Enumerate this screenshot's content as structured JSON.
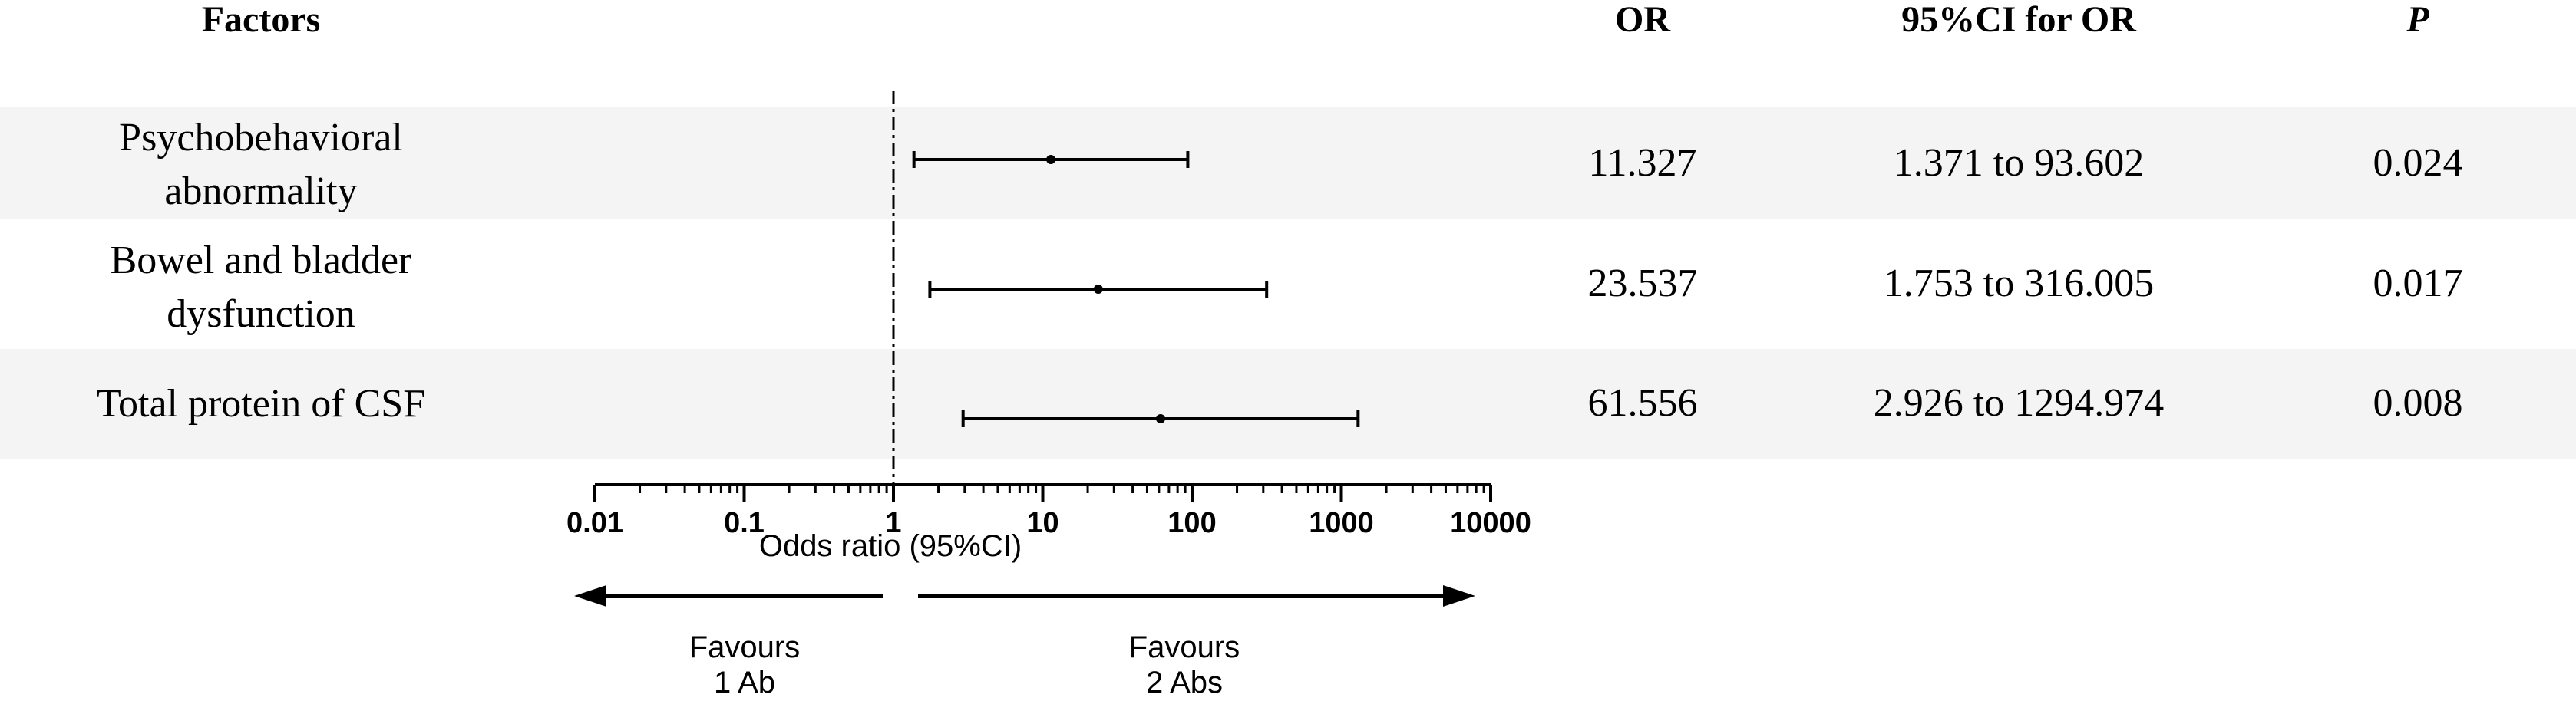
{
  "headers": {
    "factors": "Factors",
    "or": "OR",
    "ci": "95%CI for OR",
    "p": "P"
  },
  "rows": [
    {
      "factor_line1": "Psychobehavioral",
      "factor_line2": "abnormality",
      "or": "11.327",
      "ci": "1.371 to 93.602",
      "p": "0.024"
    },
    {
      "factor_line1": "Bowel and bladder",
      "factor_line2": "dysfunction",
      "or": "23.537",
      "ci": "1.753 to 316.005",
      "p": "0.017"
    },
    {
      "factor_line1": "Total protein of CSF",
      "factor_line2": "",
      "or": "61.556",
      "ci": "2.926 to 1294.974",
      "p": "0.008"
    }
  ],
  "chart_data": {
    "type": "forest",
    "scale": "log10",
    "xlim": [
      0.01,
      10000
    ],
    "xlabel": "Odds ratio (95%CI)",
    "ticks": [
      0.01,
      0.1,
      1,
      10,
      100,
      1000,
      10000
    ],
    "tick_labels": [
      "0.01",
      "0.1",
      "1",
      "10",
      "100",
      "1000",
      "10000"
    ],
    "reference_line": 1,
    "points": [
      {
        "estimate": 11.327,
        "lower": 1.371,
        "upper": 93.602
      },
      {
        "estimate": 23.537,
        "lower": 1.753,
        "upper": 316.005
      },
      {
        "estimate": 61.556,
        "lower": 2.926,
        "upper": 1294.974
      }
    ],
    "favours_left": [
      "Favours",
      "1 Ab"
    ],
    "favours_right": [
      "Favours",
      "2 Abs"
    ]
  }
}
